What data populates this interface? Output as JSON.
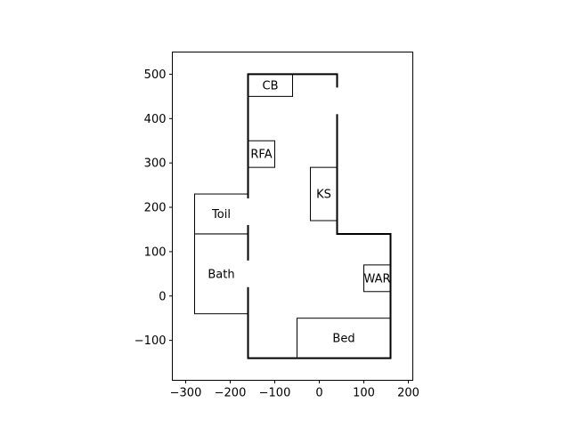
{
  "chart_data": {
    "type": "floorplan",
    "xlim": [
      -330,
      210
    ],
    "ylim": [
      -190,
      550
    ],
    "xticks": [
      -300,
      -200,
      -100,
      0,
      100,
      200
    ],
    "yticks": [
      -100,
      0,
      100,
      200,
      300,
      400,
      500
    ],
    "xtick_labels": [
      "−300",
      "−200",
      "−100",
      "0",
      "100",
      "200"
    ],
    "ytick_labels": [
      "−100",
      "0",
      "100",
      "200",
      "300",
      "400",
      "500"
    ],
    "outline": [
      [
        -160,
        500
      ],
      [
        40,
        500
      ],
      [
        40,
        140
      ],
      [
        160,
        140
      ],
      [
        160,
        -140
      ],
      [
        -160,
        -140
      ]
    ],
    "rooms": [
      {
        "label": "CB",
        "x": [
          -160,
          -60
        ],
        "y": [
          450,
          500
        ]
      },
      {
        "label": "RFA",
        "x": [
          -160,
          -100
        ],
        "y": [
          290,
          350
        ]
      },
      {
        "label": "KS",
        "x": [
          -20,
          40
        ],
        "y": [
          170,
          290
        ]
      },
      {
        "label": "Toil",
        "x": [
          -280,
          -160
        ],
        "y": [
          140,
          230
        ]
      },
      {
        "label": "Bath",
        "x": [
          -280,
          -160
        ],
        "y": [
          -40,
          140
        ]
      },
      {
        "label": "WAR",
        "x": [
          100,
          160
        ],
        "y": [
          10,
          70
        ]
      },
      {
        "label": "Bed",
        "x": [
          -50,
          160
        ],
        "y": [
          -140,
          -50
        ]
      }
    ],
    "openings": [
      {
        "x": [
          35,
          45
        ],
        "y": [
          410,
          470
        ]
      },
      {
        "x": [
          -165,
          -155
        ],
        "y": [
          160,
          220
        ]
      },
      {
        "x": [
          -165,
          -155
        ],
        "y": [
          20,
          80
        ]
      }
    ]
  }
}
